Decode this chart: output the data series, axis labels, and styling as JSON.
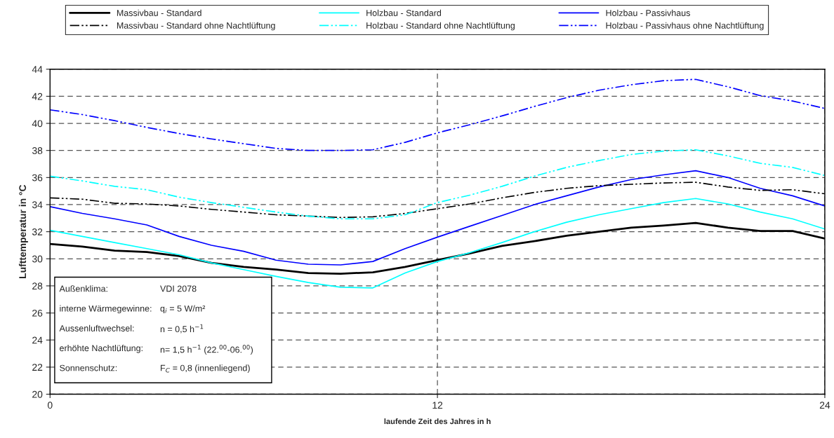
{
  "chart_data": {
    "type": "line",
    "xlabel": "laufende Zeit des Jahres in h",
    "ylabel": "Lufttemperatur in °C",
    "x": [
      0,
      1,
      2,
      3,
      4,
      5,
      6,
      7,
      8,
      9,
      10,
      11,
      12,
      13,
      14,
      15,
      16,
      17,
      18,
      19,
      20,
      21,
      22,
      23,
      24
    ],
    "xlim": [
      0,
      24
    ],
    "xticks": [
      0,
      12,
      24
    ],
    "ylim": [
      20,
      44
    ],
    "yticks": [
      20,
      22,
      24,
      26,
      28,
      30,
      32,
      34,
      36,
      38,
      40,
      42,
      44
    ],
    "grid": true,
    "legend": "top",
    "series": [
      {
        "name": "Massivbau - Standard",
        "color": "#000000",
        "line_style": "solid",
        "values": [
          31.1,
          30.9,
          30.6,
          30.5,
          30.2,
          29.7,
          29.4,
          29.2,
          28.95,
          28.9,
          29.0,
          29.4,
          29.9,
          30.4,
          30.95,
          31.3,
          31.7,
          32.0,
          32.3,
          32.45,
          32.65,
          32.3,
          32.05,
          32.05,
          31.5
        ]
      },
      {
        "name": "Holzbau - Standard",
        "color": "#00ffff",
        "line_style": "solid",
        "values": [
          32.1,
          31.65,
          31.2,
          30.75,
          30.3,
          29.7,
          29.2,
          28.7,
          28.25,
          27.9,
          27.85,
          28.95,
          29.8,
          30.45,
          31.2,
          32.0,
          32.7,
          33.25,
          33.7,
          34.15,
          34.45,
          34.05,
          33.45,
          32.95,
          32.2
        ]
      },
      {
        "name": "Holzbau - Passivhaus",
        "color": "#0000ff",
        "line_style": "solid",
        "values": [
          33.85,
          33.35,
          32.95,
          32.5,
          31.65,
          31.0,
          30.55,
          29.9,
          29.6,
          29.55,
          29.8,
          30.75,
          31.6,
          32.4,
          33.2,
          34.0,
          34.65,
          35.3,
          35.85,
          36.2,
          36.5,
          36.0,
          35.2,
          34.65,
          33.9
        ]
      },
      {
        "name": "Massivbau - Standard ohne Nachtlüftung",
        "color": "#000000",
        "line_style": "dashdot",
        "values": [
          34.5,
          34.4,
          34.1,
          34.05,
          33.9,
          33.65,
          33.45,
          33.25,
          33.15,
          33.05,
          33.1,
          33.35,
          33.7,
          34.05,
          34.5,
          34.9,
          35.2,
          35.4,
          35.5,
          35.6,
          35.65,
          35.3,
          35.05,
          35.1,
          34.8
        ]
      },
      {
        "name": "Holzbau - Standard ohne Nachtlüftung",
        "color": "#00ffff",
        "line_style": "dashdot",
        "values": [
          36.1,
          35.75,
          35.35,
          35.1,
          34.55,
          34.15,
          33.8,
          33.45,
          33.15,
          32.95,
          32.95,
          33.25,
          34.15,
          34.7,
          35.35,
          36.1,
          36.75,
          37.25,
          37.7,
          37.95,
          38.05,
          37.6,
          37.05,
          36.75,
          36.15
        ]
      },
      {
        "name": "Holzbau - Passivhaus ohne Nachtlüftung",
        "color": "#0000ff",
        "line_style": "dashdot",
        "values": [
          41.0,
          40.65,
          40.2,
          39.7,
          39.25,
          38.85,
          38.5,
          38.15,
          38.0,
          38.0,
          38.05,
          38.6,
          39.3,
          39.9,
          40.55,
          41.25,
          41.9,
          42.45,
          42.85,
          43.15,
          43.25,
          42.7,
          42.05,
          41.65,
          41.1
        ]
      }
    ],
    "annotations": [
      "Außenklima:",
      "VDI 2078",
      "interne Wärmegewinne:",
      "q$_{i}$ = 5 W/m²",
      "Aussenluftwechsel:",
      "n = 0,5 h$^{−1}$",
      "erhöhte Nachtlüftung:",
      "n= 1,5 h$^{−1}$ (22.$^{00}$-06.$^{00}$)",
      "Sonnenschutz:",
      "F$_{C}$ = 0,8 (innenliegend)"
    ]
  }
}
